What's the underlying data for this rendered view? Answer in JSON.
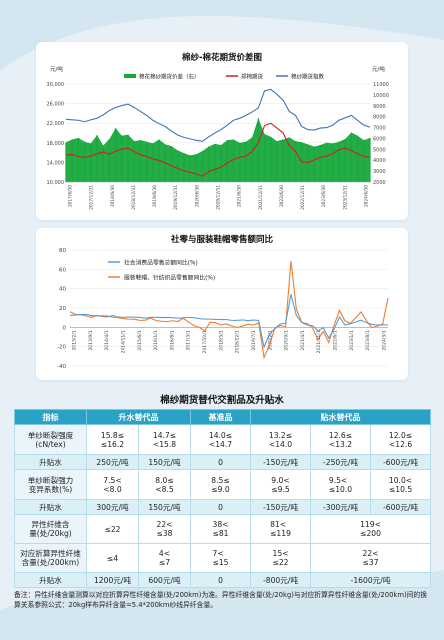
{
  "colors": {
    "accent": "#2aa2c6",
    "spread_green": "#18a83c",
    "zce_red": "#d21e1e",
    "index_blue": "#3d74b8",
    "retail_blue": "#5b9bd5",
    "apparel_orange": "#ed7d31"
  },
  "chart_data": [
    {
      "type": "area+line",
      "title": "棉纱-棉花期货价差图",
      "left_unit": "元/吨",
      "right_unit": "元/吨",
      "ylim_left": [
        10000,
        30000
      ],
      "yticks_left": [
        "30,000",
        "26,000",
        "22,000",
        "18,000",
        "14,000",
        "10,000"
      ],
      "ylim_right": [
        2000,
        11000
      ],
      "yticks_right": [
        "11000",
        "10000",
        "9000",
        "8000",
        "7000",
        "6000",
        "5000",
        "4000",
        "3000",
        "2000"
      ],
      "x_ticks": [
        "2017/6/30",
        "2017/12/31",
        "2018/6/30",
        "2018/12/31",
        "2019/6/30",
        "2019/12/31",
        "2020/6/30",
        "2020/12/31",
        "2021/6/30",
        "2021/12/31",
        "2022/6/30",
        "2022/12/31",
        "2023/6/30",
        "2023/12/31",
        "2024/6/30"
      ],
      "series": [
        {
          "name": "棉花棉纱期货价差（右）",
          "kind": "area",
          "axis": "right",
          "values": [
            5650,
            5900,
            6050,
            5700,
            5550,
            6300,
            5350,
            5950,
            6950,
            6250,
            6350,
            5750,
            5850,
            5700,
            5550,
            5900,
            5450,
            5300,
            4900,
            4650,
            4450,
            4550,
            4850,
            5250,
            5500,
            5400,
            5850,
            5900,
            5600,
            5700,
            6100,
            7850,
            6400,
            6150,
            5750,
            5900,
            6100,
            5750,
            5650,
            5450,
            5250,
            5400,
            5600,
            5550,
            5700,
            5950,
            6550,
            6250,
            5850,
            6050
          ]
        },
        {
          "name": "郑棉期货",
          "kind": "line",
          "axis": "left",
          "values": [
            15500,
            15600,
            15200,
            15000,
            15300,
            15800,
            16100,
            15700,
            16300,
            16700,
            16900,
            16200,
            15600,
            15200,
            14700,
            14400,
            13900,
            13300,
            12800,
            12300,
            12000,
            11600,
            11200,
            12100,
            12600,
            13000,
            13900,
            14600,
            15000,
            15300,
            16200,
            18000,
            21500,
            22000,
            21000,
            20000,
            17400,
            16200,
            14100,
            14000,
            14500,
            15000,
            15300,
            15800,
            16600,
            16900,
            16400,
            15800,
            15200,
            15000
          ]
        },
        {
          "name": "棉纱期货指数",
          "kind": "line",
          "axis": "left",
          "values": [
            22800,
            22700,
            22600,
            22300,
            22700,
            23000,
            23700,
            24600,
            25200,
            25600,
            25900,
            25200,
            24400,
            23600,
            22600,
            21900,
            21300,
            20400,
            19600,
            19100,
            18800,
            18500,
            18300,
            19200,
            20000,
            20700,
            21600,
            22600,
            23000,
            23600,
            24300,
            25100,
            28600,
            28900,
            27900,
            26700,
            24400,
            23600,
            21300,
            20700,
            20600,
            21000,
            21100,
            21600,
            22600,
            23100,
            23600,
            22600,
            21600,
            21200
          ]
        }
      ]
    },
    {
      "type": "line",
      "title": "社零与服装鞋帽零售额同比",
      "unit": "(%)",
      "ylim": [
        -40,
        80
      ],
      "yticks": [
        "80",
        "60",
        "40",
        "20",
        "0",
        "-20",
        "-40"
      ],
      "x_ticks": [
        "2013/2/1",
        "2013/9/1",
        "2014/4/1",
        "2014/11/1",
        "2015/6/1",
        "2016/1/1",
        "2016/8/1",
        "2017/3/1",
        "2017/10/1",
        "2018/5/1",
        "2018/12/1",
        "2019/7/1",
        "2020/2/1",
        "2020/9/1",
        "2021/4/1",
        "2021/11/1",
        "2022/6/1",
        "2023/1/1",
        "2023/8/1",
        "2024/3/1"
      ],
      "series": [
        {
          "name": "社会消费品零售总额同比(%)",
          "values": [
            12.3,
            12.7,
            13.2,
            13.3,
            12.2,
            11.9,
            11.9,
            11.7,
            10.3,
            10.6,
            10.3,
            10.7,
            10.5,
            10.2,
            9.5,
            10.4,
            10.4,
            10.1,
            10.2,
            10.0,
            9.4,
            9.8,
            10.3,
            10.0,
            9.0,
            8.6,
            8.5,
            8.2,
            8.0,
            8.1,
            7.2,
            7.2,
            7.7,
            6.9,
            7.5,
            7.2,
            -20.5,
            -7.5,
            -1.1,
            3.3,
            4.3,
            34.2,
            12.4,
            4.9,
            2.5,
            1.7,
            -3.5,
            -0.5,
            -11.1,
            -1.8,
            10.6,
            2.5,
            3.6,
            5.5,
            7.4,
            4.7,
            3.1,
            2.3,
            2.7,
            2.4
          ]
        },
        {
          "name": "服装鞋帽、针纺织品零售额同比(%)",
          "values": [
            16.1,
            13.4,
            13.0,
            11.7,
            10.4,
            12.3,
            11.3,
            10.8,
            12.3,
            10.0,
            8.9,
            8.5,
            8.3,
            7.2,
            7.4,
            9.5,
            6.9,
            6.3,
            5.9,
            6.8,
            6.0,
            9.4,
            5.5,
            1.7,
            -0.2,
            -3.4,
            5.2,
            4.8,
            2.3,
            3.5,
            1.5,
            -0.2,
            1.3,
            3.2,
            2.2,
            4.7,
            -31.1,
            -18.2,
            -1.3,
            1.9,
            0.6,
            68.7,
            18.7,
            5.0,
            4.0,
            -0.6,
            -12.7,
            -4.3,
            -15.6,
            2.1,
            17.6,
            6.9,
            4.0,
            9.9,
            16.0,
            6.9,
            -0.3,
            1.4,
            3.0,
            30.5
          ]
        }
      ]
    }
  ],
  "table": {
    "title": "棉纱期货替代交割品及升贴水",
    "headers": [
      "指标",
      "升水替代品",
      "基准品",
      "贴水替代品"
    ],
    "rows": {
      "strength_label": [
        "单纱断裂强度",
        "(cN/tex)"
      ],
      "strength_vals": [
        "15.8≤\n≤16.2",
        "14.7≤\n<15.8",
        "14.0≤\n<14.7",
        "13.2≤\n<14.0",
        "12.6≤\n<13.2",
        "12.0≤\n<12.6"
      ],
      "adj_label": "升贴水",
      "strength_adj": [
        "250元/吨",
        "150元/吨",
        "0",
        "-150元/吨",
        "-250元/吨",
        "-600元/吨"
      ],
      "cv_label": [
        "单纱断裂强力",
        "变异系数(%)"
      ],
      "cv_vals": [
        "7.5<\n<8.0",
        "8.0≤\n<8.5",
        "8.5≤\n≤9.0",
        "9.0<\n≤9.5",
        "9.5<\n≤10.0",
        "10.0<\n≤10.5"
      ],
      "cv_adj": [
        "300元/吨",
        "150元/吨",
        "0",
        "-150元/吨",
        "-300元/吨",
        "-600元/吨"
      ],
      "fiber_label": [
        "异性纤维含",
        "量(处/20kg)"
      ],
      "fiber_vals": [
        "≤22",
        "22<\n≤38",
        "38<\n≤81",
        "81<\n≤119",
        "119<\n≤200"
      ],
      "conv_label": [
        "对应折算异性纤维",
        "含量(处/200km)"
      ],
      "conv_vals": [
        "≤4",
        "4<\n≤7",
        "7<\n≤15",
        "15<\n≤22",
        "22<\n≤37"
      ],
      "fiber_adj": [
        "1200元/吨",
        "600元/吨",
        "0",
        "-800元/吨",
        "-1600元/吨"
      ]
    }
  },
  "note": "备注：异性纤维含量测算以对应折算异性纤维含量(处/200km)为准。异性纤维含量(处/20kg)与对应折算异性纤维含量(处/200km)间的换算关系参照公式：20kg样布异纤含量=5.4*200km纱线异纤含量。"
}
